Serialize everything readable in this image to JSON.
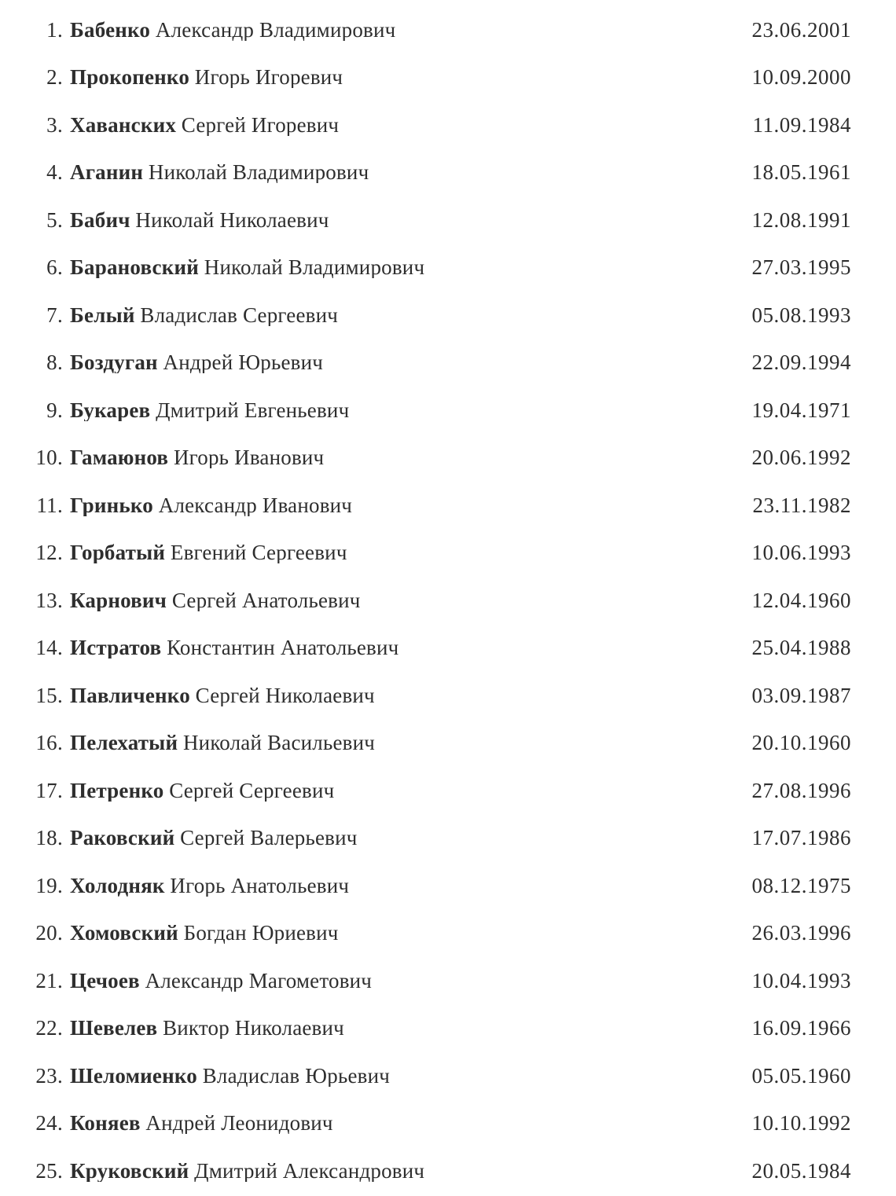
{
  "page": {
    "background": "#ffffff",
    "text_color": "#2e2e2e"
  },
  "list": {
    "entries": [
      {
        "number": "1.",
        "surname": "Бабенко",
        "given_names": "Александр Владимирович",
        "birth_date": "23.06.2001"
      },
      {
        "number": "2.",
        "surname": "Прокопенко",
        "given_names": "Игорь Игоревич",
        "birth_date": "10.09.2000"
      },
      {
        "number": "3.",
        "surname": "Хаванских",
        "given_names": "Сергей Игоревич",
        "birth_date": "11.09.1984"
      },
      {
        "number": "4.",
        "surname": "Аганин",
        "given_names": "Николай Владимирович",
        "birth_date": "18.05.1961"
      },
      {
        "number": "5.",
        "surname": "Бабич",
        "given_names": "Николай Николаевич",
        "birth_date": "12.08.1991"
      },
      {
        "number": "6.",
        "surname": "Барановский",
        "given_names": "Николай Владимирович",
        "birth_date": "27.03.1995"
      },
      {
        "number": "7.",
        "surname": "Белый",
        "given_names": "Владислав Сергеевич",
        "birth_date": "05.08.1993"
      },
      {
        "number": "8.",
        "surname": "Боздуган",
        "given_names": "Андрей Юрьевич",
        "birth_date": "22.09.1994"
      },
      {
        "number": "9.",
        "surname": "Букарев",
        "given_names": "Дмитрий Евгеньевич",
        "birth_date": "19.04.1971"
      },
      {
        "number": "10.",
        "surname": "Гамаюнов",
        "given_names": "Игорь Иванович",
        "birth_date": "20.06.1992"
      },
      {
        "number": "11.",
        "surname": "Гринько",
        "given_names": "Александр Иванович",
        "birth_date": "23.11.1982"
      },
      {
        "number": "12.",
        "surname": "Горбатый",
        "given_names": "Евгений Сергеевич",
        "birth_date": "10.06.1993"
      },
      {
        "number": "13.",
        "surname": "Карнович",
        "given_names": "Сергей Анатольевич",
        "birth_date": "12.04.1960"
      },
      {
        "number": "14.",
        "surname": "Истратов",
        "given_names": "Константин Анатольевич",
        "birth_date": "25.04.1988"
      },
      {
        "number": "15.",
        "surname": "Павличенко",
        "given_names": "Сергей Николаевич",
        "birth_date": "03.09.1987"
      },
      {
        "number": "16.",
        "surname": "Пелехатый",
        "given_names": "Николай Васильевич",
        "birth_date": "20.10.1960"
      },
      {
        "number": "17.",
        "surname": "Петренко",
        "given_names": "Сергей Сергеевич",
        "birth_date": "27.08.1996"
      },
      {
        "number": "18.",
        "surname": "Раковский",
        "given_names": "Сергей Валерьевич",
        "birth_date": "17.07.1986"
      },
      {
        "number": "19.",
        "surname": "Холодняк",
        "given_names": "Игорь Анатольевич",
        "birth_date": "08.12.1975"
      },
      {
        "number": "20.",
        "surname": "Хомовский",
        "given_names": "Богдан Юриевич",
        "birth_date": "26.03.1996"
      },
      {
        "number": "21.",
        "surname": "Цечоев",
        "given_names": "Александр Магометович",
        "birth_date": "10.04.1993"
      },
      {
        "number": "22.",
        "surname": "Шевелев",
        "given_names": "Виктор Николаевич",
        "birth_date": "16.09.1966"
      },
      {
        "number": "23.",
        "surname": "Шеломиенко",
        "given_names": "Владислав Юрьевич",
        "birth_date": "05.05.1960"
      },
      {
        "number": "24.",
        "surname": "Коняев",
        "given_names": "Андрей Леонидович",
        "birth_date": "10.10.1992"
      },
      {
        "number": "25.",
        "surname": "Круковский",
        "given_names": "Дмитрий Александрович",
        "birth_date": "20.05.1984"
      }
    ]
  }
}
